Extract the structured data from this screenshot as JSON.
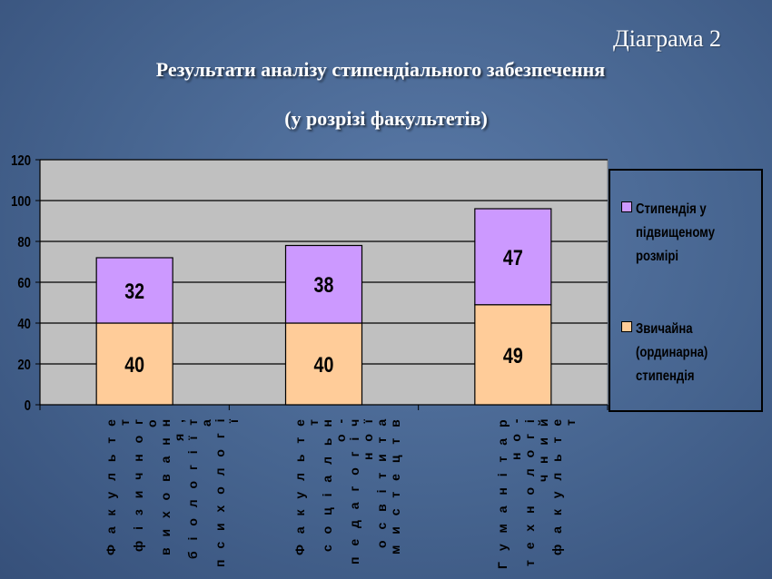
{
  "header": {
    "diagram_label": "Діаграма 2",
    "title_line1": "Результати аналізу стипендіального забезпечення",
    "title_line2": "(у розрізі факультетів)"
  },
  "colors": {
    "plot_bg": "#c0c0c0",
    "regular": "#ffcc99",
    "increased": "#cc99ff",
    "grid": "#000000"
  },
  "legend": {
    "increased": "Стипендія у підвищеному розмірі",
    "regular": "Звичайна (ординарна) стипендія"
  },
  "categories": [
    "Факультет фізичного виховання, біології та психології",
    "Факультет соціально-педагогічної освіти та мистецтв",
    "Гуманітарно-технологічний факультет"
  ],
  "category_lines": [
    [
      "Ф а к у л ь т е т",
      "ф і з и ч н о г о",
      "в и х о в а н н я ,",
      "б і о л о г і ї  т а",
      "п с и х о л о г і ї"
    ],
    [
      "Ф а к у л ь т е т",
      "с о ц і а л ь н о -",
      "п е д а г о г і ч н о ї",
      "о с в і т и  т а",
      "м и с т е ц т в"
    ],
    [
      "Г у м а н і т а р н о -",
      "т е х н о л о г і ч н и й",
      "ф а к у л ь т е т"
    ]
  ],
  "chart_data": {
    "type": "bar",
    "stacked": true,
    "title": "Результати аналізу стипендіального забезпечення (у розрізі факультетів)",
    "categories": [
      "Факультет фізичного виховання, біології та психології",
      "Факультет соціально-педагогічної освіти та мистецтв",
      "Гуманітарно-технологічний факультет"
    ],
    "series": [
      {
        "name": "Звичайна (ординарна) стипендія",
        "values": [
          40,
          40,
          49
        ]
      },
      {
        "name": "Стипендія у підвищеному розмірі",
        "values": [
          32,
          38,
          47
        ]
      }
    ],
    "ylim": [
      0,
      120
    ],
    "yticks": [
      0,
      20,
      40,
      60,
      80,
      100,
      120
    ],
    "xlabel": "",
    "ylabel": "",
    "grid": true,
    "legend_position": "right"
  }
}
